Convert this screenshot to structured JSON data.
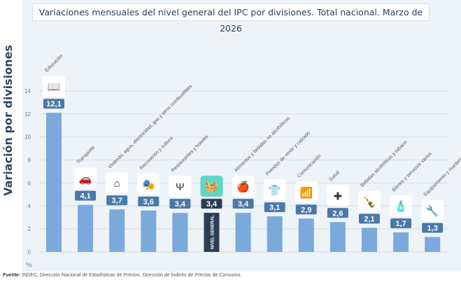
{
  "title": "Variaciones mensuales del nivel general del IPC por divisiones. Total nacional. Marzo de 2026",
  "source_label": "Fuente:",
  "source_text": "INDEC, Dirección Nacional de Estadísticas de Precios. Dirección de Índices de Precios de Consumo.",
  "chart_data": {
    "type": "bar",
    "ylabel": "Variación por divisiones",
    "yunit": "%",
    "ylim": [
      0,
      14
    ],
    "yticks": [
      0,
      2,
      4,
      6,
      8,
      10,
      12,
      14
    ],
    "grid": true,
    "categories": [
      "Educación",
      "Transporte",
      "Vivienda, agua, electricidad, gas y otros combustibles",
      "Recreación y cultura",
      "Restaurantes y hoteles",
      "NIVEL GENERAL",
      "Alimentos y bebidas no alcohólicas",
      "Prendas de vestir y calzado",
      "Comunicación",
      "Salud",
      "Bebidas alcohólicas y tabaco",
      "Bienes y servicios varios",
      "Equipamiento y mantenimiento del hogar"
    ],
    "values": [
      12.1,
      4.1,
      3.7,
      3.6,
      3.4,
      3.4,
      3.4,
      3.1,
      2.9,
      2.6,
      2.1,
      1.7,
      1.3
    ],
    "data_labels": [
      "12,1",
      "4,1",
      "3,7",
      "3,6",
      "3,4",
      "3,4",
      "3,4",
      "3,1",
      "2,9",
      "2,6",
      "2,1",
      "1,7",
      "1,3"
    ],
    "icons": [
      "book-icon",
      "car-icon",
      "house-energy-icon",
      "theater-masks-icon",
      "restaurant-hotel-icon",
      "basket-icon",
      "food-icon",
      "clothing-icon",
      "wifi-icon",
      "health-cross-icon",
      "bottle-icon",
      "soap-comb-icon",
      "tools-icon"
    ],
    "colors": {
      "bar": "#7aaadb",
      "highlight_bar": "#2c3e55",
      "label": "#4a79a8",
      "highlight_icon": "#5fd6c8"
    }
  }
}
